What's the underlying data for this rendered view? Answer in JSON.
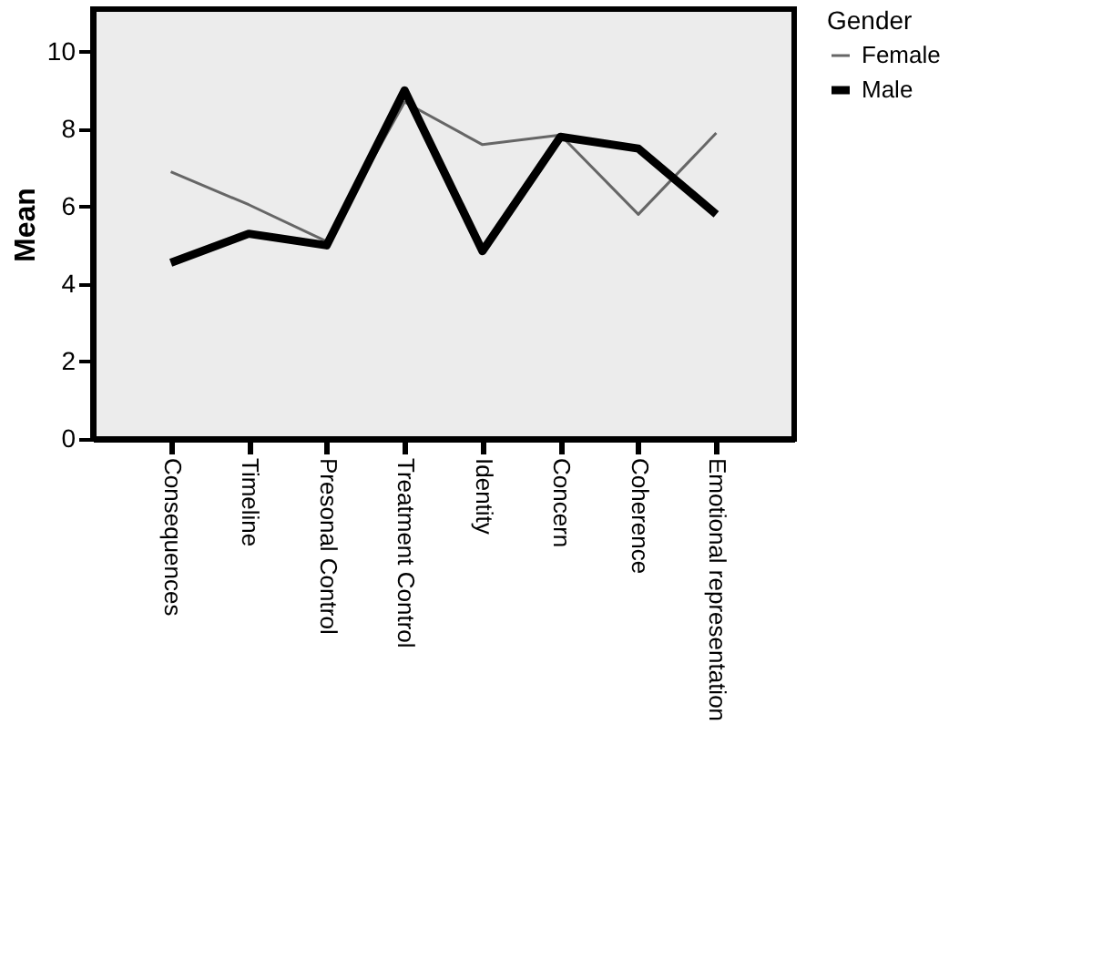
{
  "chart_data": {
    "type": "line",
    "ylabel": "Mean",
    "legend_title": "Gender",
    "legend": "right",
    "categories": [
      "Consequences",
      "Timeline",
      "Presonal Control",
      "Treatment Control",
      "Identity",
      "Concern",
      "Coherence",
      "Emotional representation"
    ],
    "series": [
      {
        "name": "Female",
        "color": "#666666",
        "values": [
          6.9,
          6.05,
          5.1,
          8.7,
          7.6,
          7.85,
          5.8,
          7.9
        ]
      },
      {
        "name": "Male",
        "color": "#000000",
        "values": [
          4.55,
          5.3,
          5.0,
          9.0,
          4.85,
          7.8,
          7.5,
          5.8
        ]
      }
    ],
    "ylim": [
      0,
      11.1
    ],
    "yticks": [
      0,
      2,
      4,
      6,
      8,
      10
    ],
    "grid": false,
    "marker": "none",
    "line_style": "solid"
  }
}
